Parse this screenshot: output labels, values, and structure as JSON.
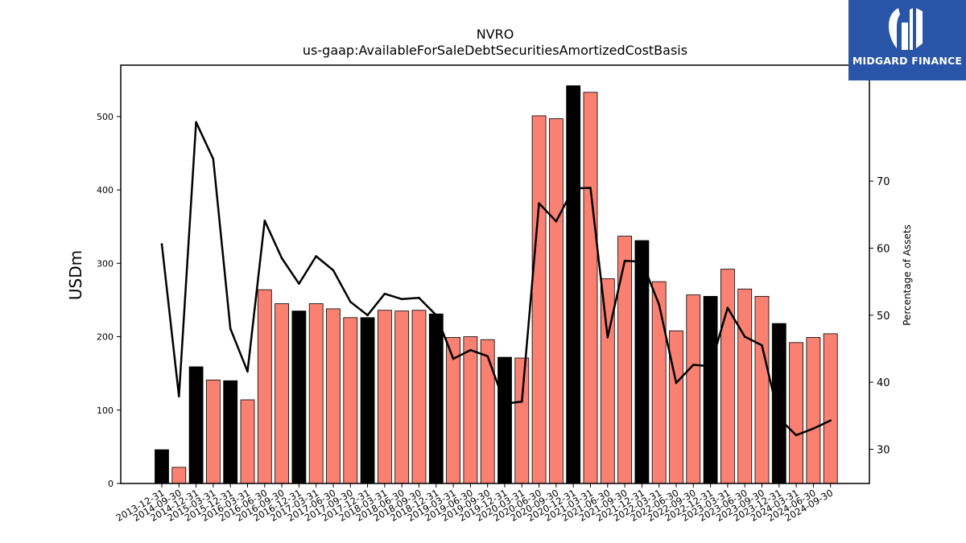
{
  "chart_data": {
    "type": "bar",
    "title": "NVRO",
    "subtitle": "us-gaap:AvailableForSaleDebtSecuritiesAmortizedCostBasis",
    "ylabel": "USDm",
    "y2label": "Percentage of Assets",
    "ylim": [
      0,
      570
    ],
    "y2lim": [
      24.9,
      87.3
    ],
    "yticks": [
      0,
      100,
      200,
      300,
      400,
      500
    ],
    "y2ticks": [
      30,
      40,
      50,
      60,
      70
    ],
    "categories": [
      "2013-12-31",
      "2014-09-30",
      "2014-12-31",
      "2015-03-31",
      "2015-12-31",
      "2016-03-31",
      "2016-06-30",
      "2016-09-30",
      "2016-12-31",
      "2017-03-31",
      "2017-06-30",
      "2017-09-30",
      "2017-12-31",
      "2018-03-31",
      "2018-06-30",
      "2018-09-30",
      "2018-12-31",
      "2019-03-31",
      "2019-06-30",
      "2019-09-30",
      "2019-12-31",
      "2020-03-31",
      "2020-06-30",
      "2020-09-30",
      "2020-12-31",
      "2021-03-31",
      "2021-06-30",
      "2021-09-30",
      "2021-12-31",
      "2022-03-31",
      "2022-06-30",
      "2022-09-30",
      "2022-12-31",
      "2023-03-31",
      "2023-06-30",
      "2023-09-30",
      "2023-12-31",
      "2024-03-31",
      "2024-06-30",
      "2024-09-30"
    ],
    "series": [
      {
        "values": [
          46,
          22,
          159,
          141,
          140,
          114,
          264,
          245,
          235,
          245,
          238,
          226,
          226,
          236,
          235,
          236,
          231,
          199,
          200,
          196,
          172,
          171,
          501,
          497,
          542,
          533,
          279,
          337,
          331,
          275,
          208,
          257,
          255,
          292,
          265,
          255,
          218,
          192,
          199,
          204
        ]
      },
      {
        "values": [
          60.6,
          37.9,
          78.8,
          73.3,
          48.0,
          41.6,
          64.1,
          58.5,
          54.7,
          58.8,
          56.7,
          52.0,
          50.0,
          53.2,
          52.4,
          52.6,
          50.0,
          43.5,
          44.8,
          43.9,
          36.8,
          37.1,
          66.7,
          64.0,
          68.9,
          69.0,
          46.7,
          58.1,
          58.0,
          51.6,
          39.9,
          42.6,
          42.4,
          51.1,
          46.8,
          45.5,
          34.6,
          32.1,
          33.1,
          34.3
        ]
      }
    ],
    "colors": {
      "bar": "#fa8072",
      "bar_year_end": "#000000",
      "line": "#000000"
    },
    "grid": false
  },
  "logo": {
    "text": "MIDGARD FINANCE",
    "bg": "#2855a8"
  }
}
